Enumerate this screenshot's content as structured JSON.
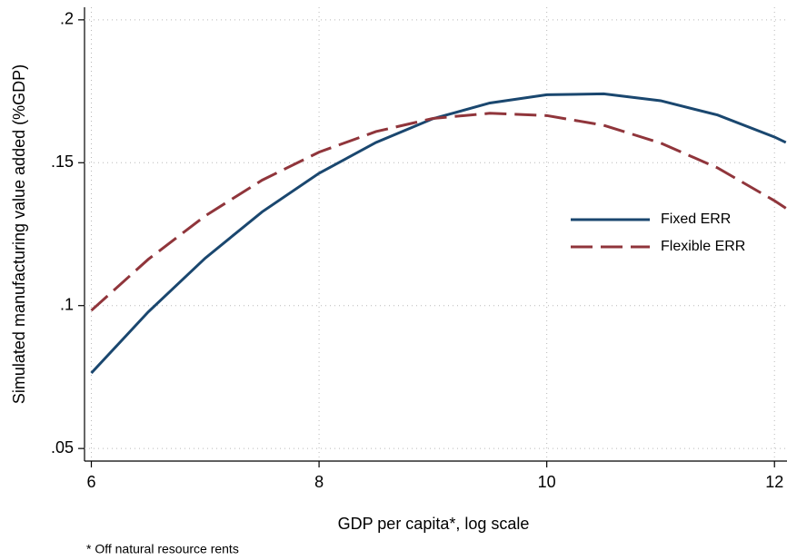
{
  "chart_data": {
    "type": "line",
    "y_label": "Simulated manufacturing value added (%GDP)",
    "x_label": "GDP per capita*, log scale",
    "note": "* Off natural resource rents",
    "x": [
      6,
      6.5,
      7,
      7.5,
      8,
      8.5,
      9,
      9.5,
      10,
      10.5,
      11,
      11.5,
      12,
      12.1
    ],
    "series": [
      {
        "name": "Fixed ERR",
        "color": "#1a476f",
        "dash": "solid",
        "values": [
          0.0764,
          0.0978,
          0.1166,
          0.1328,
          0.1463,
          0.1571,
          0.1654,
          0.1709,
          0.1738,
          0.1741,
          0.1717,
          0.1667,
          0.159,
          0.1571
        ]
      },
      {
        "name": "Flexible ERR",
        "color": "#90353b",
        "dash": "dashed",
        "values": [
          0.0983,
          0.1162,
          0.1314,
          0.1439,
          0.1537,
          0.1609,
          0.1655,
          0.1673,
          0.1665,
          0.1631,
          0.1569,
          0.1482,
          0.1367,
          0.1341
        ]
      }
    ],
    "xlim": [
      5.94,
      12.11
    ],
    "ylim": [
      0.0456,
      0.2044
    ],
    "xticks": [
      6,
      8,
      10,
      12
    ],
    "yticks": [
      {
        "value": 0.05,
        "label": ".05"
      },
      {
        "value": 0.1,
        "label": ".1"
      },
      {
        "value": 0.15,
        "label": ".15"
      },
      {
        "value": 0.2,
        "label": ".2"
      }
    ],
    "grid": true,
    "legend": "right"
  }
}
